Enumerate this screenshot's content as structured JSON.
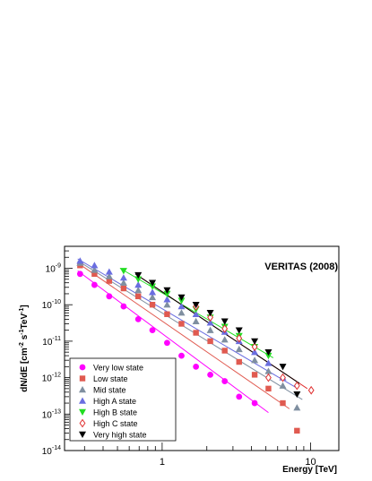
{
  "chart_data": {
    "type": "scatter",
    "title": "VERITAS (2008)",
    "xlabel": "Energy [TeV]",
    "ylabel_parts": [
      "dN/dE [cm",
      "-2",
      " s",
      "-1",
      "TeV",
      "-1",
      "]"
    ],
    "xscale": "log",
    "yscale": "log",
    "xlim": [
      0.22,
      15.5
    ],
    "ylim": [
      1e-14,
      4e-09
    ],
    "x_ticks": [
      {
        "v": 1,
        "label": "1"
      },
      {
        "v": 10,
        "label": "10"
      }
    ],
    "y_ticks": [
      {
        "v": 1e-14,
        "base": "10",
        "exp": "-14"
      },
      {
        "v": 1e-13,
        "base": "10",
        "exp": "-13"
      },
      {
        "v": 1e-12,
        "base": "10",
        "exp": "-12"
      },
      {
        "v": 1e-11,
        "base": "10",
        "exp": "-11"
      },
      {
        "v": 1e-10,
        "base": "10",
        "exp": "-10"
      },
      {
        "v": 1e-09,
        "base": "10",
        "exp": "-9"
      }
    ],
    "legend_position": "bottom-left",
    "series": [
      {
        "name": "Very low state",
        "marker": "circle",
        "color": "#ff00ff",
        "x": [
          0.28,
          0.35,
          0.44,
          0.55,
          0.69,
          0.86,
          1.08,
          1.35,
          1.69,
          2.11,
          2.64,
          3.3,
          4.2
        ],
        "y": [
          7e-10,
          3.5e-10,
          1.7e-10,
          9e-11,
          4e-11,
          2e-11,
          9e-12,
          4e-12,
          2e-12,
          1.2e-12,
          8e-13,
          3e-13,
          2e-13
        ],
        "fit": {
          "x1": 0.27,
          "x2": 5.2,
          "y1": 8.5e-10,
          "y2": 1.1e-13
        }
      },
      {
        "name": "Low state",
        "marker": "square",
        "color": "#e05a50",
        "x": [
          0.28,
          0.35,
          0.44,
          0.55,
          0.69,
          0.86,
          1.08,
          1.35,
          1.69,
          2.11,
          2.64,
          3.3,
          4.2,
          5.2,
          6.5,
          8.1
        ],
        "y": [
          1.2e-09,
          7e-10,
          4.5e-10,
          2.8e-10,
          1.7e-10,
          1e-10,
          5.5e-11,
          3e-11,
          1.7e-11,
          1e-11,
          5.5e-12,
          2.7e-12,
          1.2e-12,
          5e-13,
          2e-13,
          3.5e-14
        ],
        "fit": {
          "x1": 0.27,
          "x2": 7.2,
          "y1": 1.4e-09,
          "y2": 1.4e-13
        }
      },
      {
        "name": "Mid state",
        "marker": "triangle-up",
        "color": "#7f8fa0",
        "x": [
          0.28,
          0.35,
          0.44,
          0.55,
          0.69,
          0.86,
          1.08,
          1.35,
          1.69,
          2.11,
          2.64,
          3.3,
          4.2,
          5.2,
          6.5,
          8.1
        ],
        "y": [
          1.4e-09,
          9e-10,
          6e-10,
          4e-10,
          2.5e-10,
          1.6e-10,
          1e-10,
          6e-11,
          3.5e-11,
          2e-11,
          1.1e-11,
          6e-12,
          3e-12,
          1.5e-12,
          6e-13,
          1.5e-13
        ],
        "fit": {
          "x1": 0.27,
          "x2": 8.8,
          "y1": 1.6e-09,
          "y2": 2.5e-13
        }
      },
      {
        "name": "High A state",
        "marker": "triangle-up",
        "color": "#6a6ee0",
        "x": [
          0.28,
          0.35,
          0.44,
          0.55,
          0.69,
          0.86,
          1.08,
          1.35,
          1.69,
          2.11,
          2.64,
          3.3,
          4.2,
          5.2,
          6.5
        ],
        "y": [
          1.6e-09,
          1.2e-09,
          8e-10,
          5.5e-10,
          3.5e-10,
          2.2e-10,
          1.4e-10,
          9e-11,
          5.5e-11,
          3.2e-11,
          1.8e-11,
          1e-11,
          5e-12,
          2.5e-12,
          1e-12
        ],
        "fit": {
          "x1": 0.27,
          "x2": 8.2,
          "y1": 1.8e-09,
          "y2": 5e-13
        }
      },
      {
        "name": "High B state",
        "marker": "triangle-down",
        "color": "#22dd22",
        "x": [
          0.55,
          0.69,
          0.86,
          1.08,
          1.35,
          1.69,
          2.11,
          2.64,
          3.3,
          4.2,
          5.2
        ],
        "y": [
          8.5e-10,
          5e-10,
          3.2e-10,
          2e-10,
          1.3e-10,
          7.5e-11,
          4.5e-11,
          2.5e-11,
          1.4e-11,
          7e-12,
          4e-12
        ],
        "fit": {
          "x1": 0.52,
          "x2": 5.6,
          "y1": 1e-09,
          "y2": 3.5e-12
        }
      },
      {
        "name": "High C state",
        "marker": "diamond-open",
        "color": "#e03030",
        "x": [
          1.69,
          2.11,
          2.64,
          3.3,
          4.2,
          5.2,
          6.5,
          8.1,
          10.1
        ],
        "y": [
          9e-11,
          4.5e-11,
          2.2e-11,
          1.2e-11,
          7e-12,
          1e-12,
          1e-12,
          6e-13,
          4.5e-13
        ],
        "fit": {
          "x1": 0.7,
          "x2": 9.5,
          "y1": 6e-10,
          "y2": 5e-13
        }
      },
      {
        "name": "Very high state",
        "marker": "triangle-down",
        "color": "#000000",
        "x": [
          0.69,
          0.86,
          1.08,
          1.35,
          1.69,
          2.11,
          2.64,
          3.3,
          4.2,
          5.2,
          6.5,
          8.1
        ],
        "y": [
          6.5e-10,
          4e-10,
          2.5e-10,
          1.6e-10,
          1e-10,
          6e-11,
          3.5e-11,
          2e-11,
          1e-11,
          5e-12,
          2e-12,
          3.5e-13
        ],
        "fit": {
          "x1": 0.66,
          "x2": 8.4,
          "y1": 7e-10,
          "y2": 7e-13
        }
      }
    ]
  }
}
